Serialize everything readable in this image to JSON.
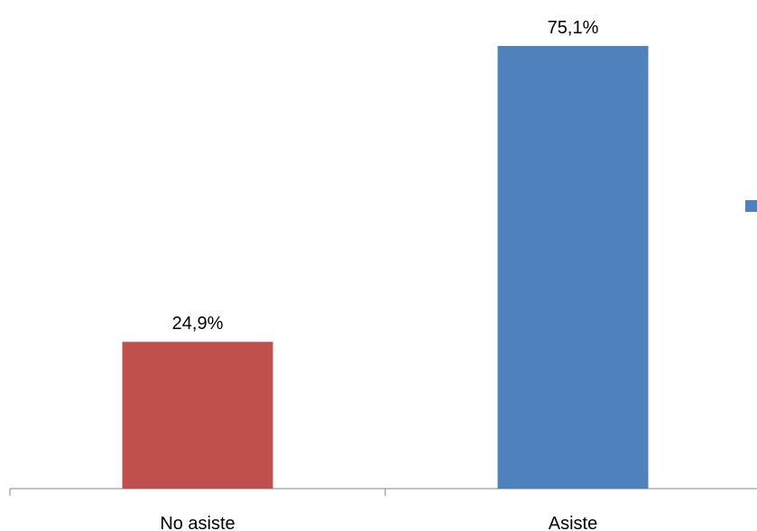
{
  "chart_data": {
    "type": "bar",
    "categories": [
      "No asiste",
      "Asiste"
    ],
    "values": [
      24.9,
      75.1
    ],
    "value_labels": [
      "24,9%",
      "75,1%"
    ],
    "colors": [
      "#C0504D",
      "#4F81BD"
    ],
    "ylim": [
      0,
      75.1
    ],
    "grid": false,
    "legend": "right, cut off"
  }
}
